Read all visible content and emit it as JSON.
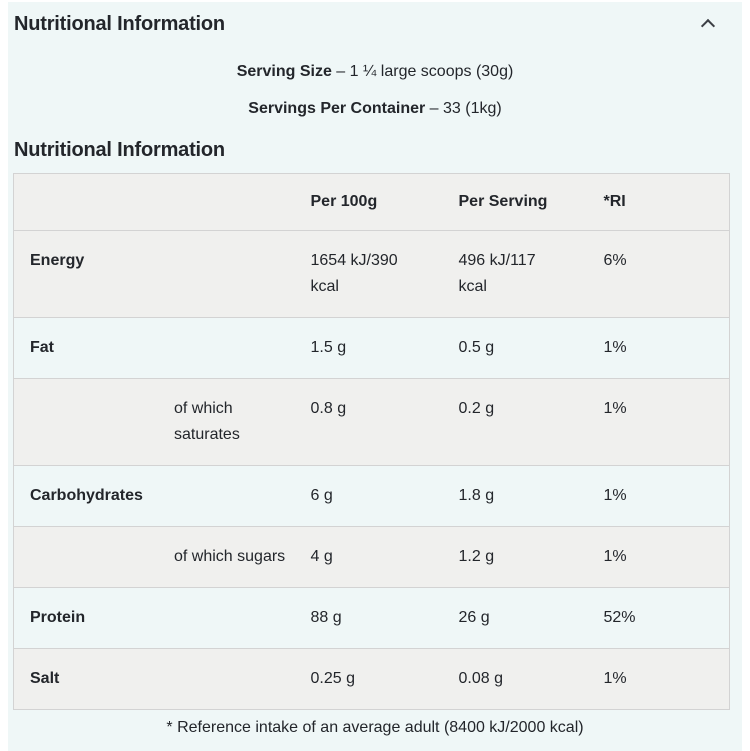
{
  "accordion": {
    "title": "Nutritional Information",
    "chevron_icon": "chevron-up"
  },
  "serving_info": {
    "lines": [
      {
        "label": "Serving Size",
        "value": " – 1 ¼ large scoops (30g)"
      },
      {
        "label": "Servings Per Container",
        "value": " – 33 (1kg)"
      }
    ]
  },
  "table_section": {
    "heading": "Nutritional Information",
    "columns": {
      "label": "",
      "per_100g": "Per 100g",
      "per_serving": "Per Serving",
      "ri": "*RI"
    },
    "rows": [
      {
        "label": "Energy",
        "indent": false,
        "per_100g": "1654 kJ/390 kcal",
        "per_serving": "496 kJ/117 kcal",
        "ri": "6%"
      },
      {
        "label": "Fat",
        "indent": false,
        "per_100g": "1.5 g",
        "per_serving": "0.5 g",
        "ri": "1%"
      },
      {
        "label": "of which saturates",
        "indent": true,
        "per_100g": "0.8 g",
        "per_serving": "0.2 g",
        "ri": "1%"
      },
      {
        "label": "Carbohydrates",
        "indent": false,
        "per_100g": "6 g",
        "per_serving": "1.8 g",
        "ri": "1%"
      },
      {
        "label": "of which sugars",
        "indent": true,
        "per_100g": "4 g",
        "per_serving": "1.2 g",
        "ri": "1%"
      },
      {
        "label": "Protein",
        "indent": false,
        "per_100g": "88 g",
        "per_serving": "26 g",
        "ri": "52%"
      },
      {
        "label": "Salt",
        "indent": false,
        "per_100g": "0.25 g",
        "per_serving": "0.08 g",
        "ri": "1%"
      }
    ],
    "footnote": "* Reference intake of an average adult (8400 kJ/2000 kcal)"
  },
  "colors": {
    "page_tint": "#eff7f7",
    "stripe_gray": "#f0f0ee",
    "row_border": "#d3d3d3",
    "text": "#23262b"
  }
}
